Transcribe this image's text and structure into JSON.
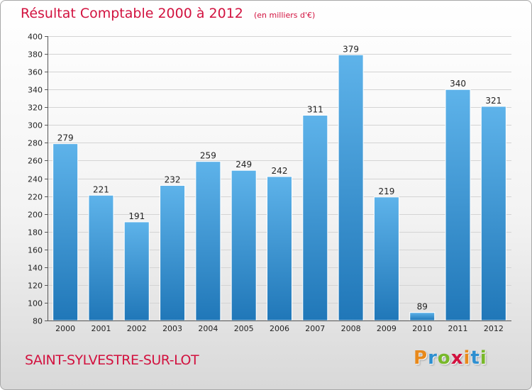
{
  "header": {
    "title": "Résultat Comptable 2000 à 2012",
    "unit": "(en milliers d'€)"
  },
  "footer": {
    "town": "SAINT-SYLVESTRE-SUR-LOT",
    "logo": [
      {
        "char": "P",
        "color": "#e8891b"
      },
      {
        "char": "r",
        "color": "#2e8fd0"
      },
      {
        "char": "o",
        "color": "#78b82a"
      },
      {
        "char": "x",
        "color": "#d2123f"
      },
      {
        "char": "i",
        "color": "#e8891b"
      },
      {
        "char": "t",
        "color": "#2e8fd0"
      },
      {
        "char": "i",
        "color": "#78b82a"
      }
    ]
  },
  "colors": {
    "bar_top": "#5eb3ea",
    "bar_bottom": "#2077b8",
    "title": "#d2123f"
  },
  "chart_data": {
    "type": "bar",
    "title": "Résultat Comptable 2000 à 2012",
    "subtitle": "(en milliers d'€)",
    "categories": [
      "2000",
      "2001",
      "2002",
      "2003",
      "2004",
      "2005",
      "2006",
      "2007",
      "2008",
      "2009",
      "2010",
      "2011",
      "2012"
    ],
    "values": [
      279,
      221,
      191,
      232,
      259,
      249,
      242,
      311,
      379,
      219,
      89,
      340,
      321
    ],
    "ylim": [
      80,
      400
    ],
    "yticks": [
      80,
      100,
      120,
      140,
      160,
      180,
      200,
      220,
      240,
      260,
      280,
      300,
      320,
      340,
      360,
      380,
      400
    ],
    "grid": true,
    "xlabel": "",
    "ylabel": ""
  }
}
